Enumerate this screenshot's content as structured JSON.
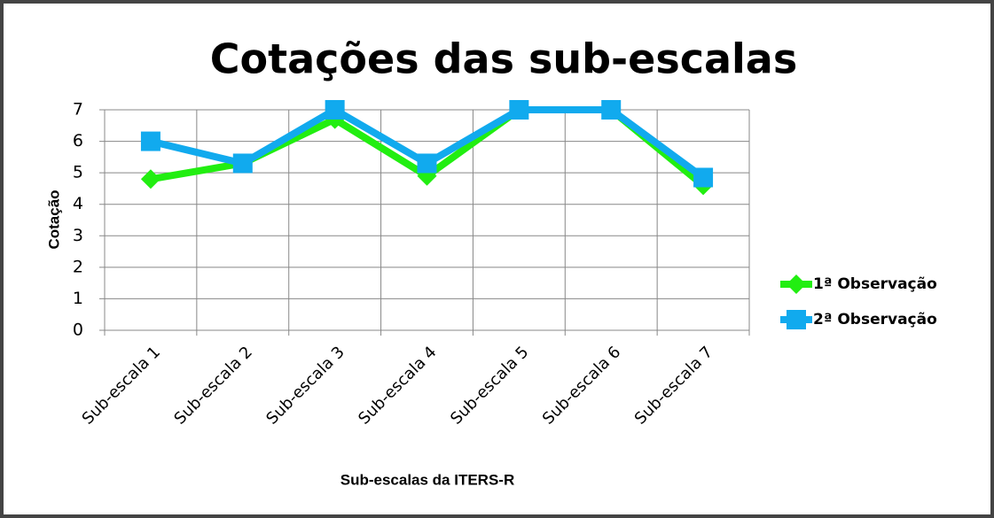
{
  "chart_data": {
    "type": "line",
    "title": "Cotações das sub-escalas",
    "x_label": "Sub-escalas da ITERS-R",
    "y_label": "Cotação",
    "categories": [
      "Sub-escala 1",
      "Sub-escala 2",
      "Sub-escala 3",
      "Sub-escala 4",
      "Sub-escala 5",
      "Sub-escala 6",
      "Sub-escala 7"
    ],
    "series": [
      {
        "name": "1ª Observação",
        "color": "#22ee11",
        "marker": "diamond",
        "values": [
          4.8,
          5.3,
          6.7,
          4.9,
          7,
          7,
          4.6
        ]
      },
      {
        "name": "2ª Observação",
        "color": "#11aaee",
        "marker": "square",
        "values": [
          6.0,
          5.3,
          7,
          5.3,
          7,
          7,
          4.85
        ]
      }
    ],
    "ylim": [
      0,
      7
    ],
    "yticks": [
      0,
      1,
      2,
      3,
      4,
      5,
      6,
      7
    ],
    "grid": true,
    "legend": "right"
  }
}
